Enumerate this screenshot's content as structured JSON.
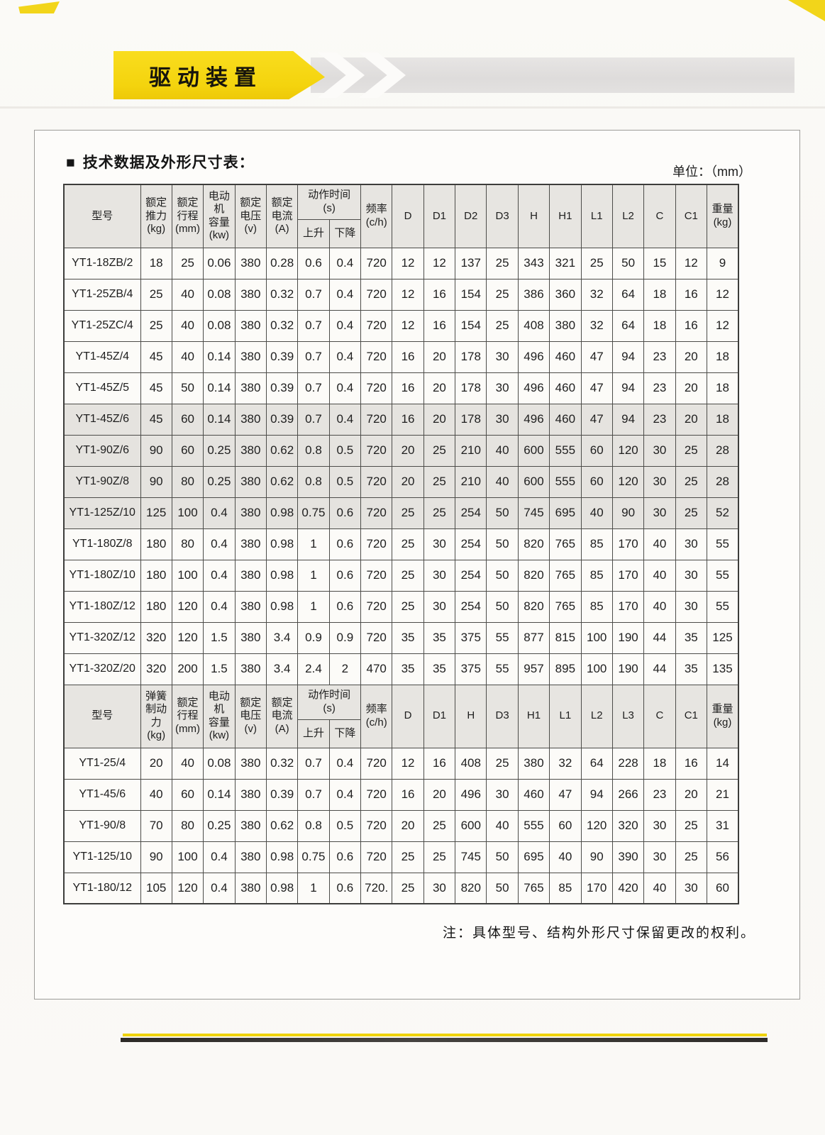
{
  "banner": {
    "title": "驱动装置"
  },
  "panel": {
    "bullet": "■",
    "title": "技术数据及外形尺寸表：",
    "unit": "单位：（mm）",
    "note": "注：具体型号、结构外形尺寸保留更改的权利。"
  },
  "colors": {
    "accent_yellow": "#f4d40e",
    "banner_gray": "#e0dedd",
    "header_cell_gray": "#e7e5e1",
    "shaded_row_gray": "#e5e3df",
    "footer_dark_line": "#2c2a27"
  },
  "table": {
    "sections": [
      {
        "header": {
          "model": "型号",
          "spec_cols": [
            [
              "额定",
              "推力",
              "(kg)"
            ],
            [
              "额定",
              "行程",
              "(mm)"
            ],
            [
              "电动机",
              "容量",
              "(kw)"
            ],
            [
              "额定",
              "电压",
              "(v)"
            ],
            [
              "额定",
              "电流",
              "(A)"
            ]
          ],
          "action_time": {
            "title": [
              "动作时间",
              "(s)"
            ],
            "up": "上升",
            "down": "下降"
          },
          "freq": [
            "频率",
            "(c/h)"
          ],
          "dims": [
            "D",
            "D1",
            "D2",
            "D3",
            "H",
            "H1",
            "L1",
            "L2",
            "C",
            "C1"
          ],
          "weight": [
            "重量",
            "(kg)"
          ]
        },
        "rows": [
          {
            "model": "YT1-18ZB/2",
            "shaded": false,
            "values": [
              "18",
              "25",
              "0.06",
              "380",
              "0.28",
              "0.6",
              "0.4",
              "720",
              "12",
              "12",
              "137",
              "25",
              "343",
              "321",
              "25",
              "50",
              "15",
              "12",
              "9"
            ]
          },
          {
            "model": "YT1-25ZB/4",
            "shaded": false,
            "values": [
              "25",
              "40",
              "0.08",
              "380",
              "0.32",
              "0.7",
              "0.4",
              "720",
              "12",
              "16",
              "154",
              "25",
              "386",
              "360",
              "32",
              "64",
              "18",
              "16",
              "12"
            ]
          },
          {
            "model": "YT1-25ZC/4",
            "shaded": false,
            "values": [
              "25",
              "40",
              "0.08",
              "380",
              "0.32",
              "0.7",
              "0.4",
              "720",
              "12",
              "16",
              "154",
              "25",
              "408",
              "380",
              "32",
              "64",
              "18",
              "16",
              "12"
            ]
          },
          {
            "model": "YT1-45Z/4",
            "shaded": false,
            "values": [
              "45",
              "40",
              "0.14",
              "380",
              "0.39",
              "0.7",
              "0.4",
              "720",
              "16",
              "20",
              "178",
              "30",
              "496",
              "460",
              "47",
              "94",
              "23",
              "20",
              "18"
            ]
          },
          {
            "model": "YT1-45Z/5",
            "shaded": false,
            "values": [
              "45",
              "50",
              "0.14",
              "380",
              "0.39",
              "0.7",
              "0.4",
              "720",
              "16",
              "20",
              "178",
              "30",
              "496",
              "460",
              "47",
              "94",
              "23",
              "20",
              "18"
            ]
          },
          {
            "model": "YT1-45Z/6",
            "shaded": true,
            "values": [
              "45",
              "60",
              "0.14",
              "380",
              "0.39",
              "0.7",
              "0.4",
              "720",
              "16",
              "20",
              "178",
              "30",
              "496",
              "460",
              "47",
              "94",
              "23",
              "20",
              "18"
            ]
          },
          {
            "model": "YT1-90Z/6",
            "shaded": true,
            "values": [
              "90",
              "60",
              "0.25",
              "380",
              "0.62",
              "0.8",
              "0.5",
              "720",
              "20",
              "25",
              "210",
              "40",
              "600",
              "555",
              "60",
              "120",
              "30",
              "25",
              "28"
            ]
          },
          {
            "model": "YT1-90Z/8",
            "shaded": true,
            "values": [
              "90",
              "80",
              "0.25",
              "380",
              "0.62",
              "0.8",
              "0.5",
              "720",
              "20",
              "25",
              "210",
              "40",
              "600",
              "555",
              "60",
              "120",
              "30",
              "25",
              "28"
            ]
          },
          {
            "model": "YT1-125Z/10",
            "shaded": true,
            "values": [
              "125",
              "100",
              "0.4",
              "380",
              "0.98",
              "0.75",
              "0.6",
              "720",
              "25",
              "25",
              "254",
              "50",
              "745",
              "695",
              "40",
              "90",
              "30",
              "25",
              "52"
            ]
          },
          {
            "model": "YT1-180Z/8",
            "shaded": false,
            "values": [
              "180",
              "80",
              "0.4",
              "380",
              "0.98",
              "1",
              "0.6",
              "720",
              "25",
              "30",
              "254",
              "50",
              "820",
              "765",
              "85",
              "170",
              "40",
              "30",
              "55"
            ]
          },
          {
            "model": "YT1-180Z/10",
            "shaded": false,
            "values": [
              "180",
              "100",
              "0.4",
              "380",
              "0.98",
              "1",
              "0.6",
              "720",
              "25",
              "30",
              "254",
              "50",
              "820",
              "765",
              "85",
              "170",
              "40",
              "30",
              "55"
            ]
          },
          {
            "model": "YT1-180Z/12",
            "shaded": false,
            "values": [
              "180",
              "120",
              "0.4",
              "380",
              "0.98",
              "1",
              "0.6",
              "720",
              "25",
              "30",
              "254",
              "50",
              "820",
              "765",
              "85",
              "170",
              "40",
              "30",
              "55"
            ]
          },
          {
            "model": "YT1-320Z/12",
            "shaded": false,
            "values": [
              "320",
              "120",
              "1.5",
              "380",
              "3.4",
              "0.9",
              "0.9",
              "720",
              "35",
              "35",
              "375",
              "55",
              "877",
              "815",
              "100",
              "190",
              "44",
              "35",
              "125"
            ]
          },
          {
            "model": "YT1-320Z/20",
            "shaded": false,
            "values": [
              "320",
              "200",
              "1.5",
              "380",
              "3.4",
              "2.4",
              "2",
              "470",
              "35",
              "35",
              "375",
              "55",
              "957",
              "895",
              "100",
              "190",
              "44",
              "35",
              "135"
            ]
          }
        ]
      },
      {
        "header": {
          "model": "型号",
          "spec_cols": [
            [
              "弹簧",
              "制动力",
              "(kg)"
            ],
            [
              "额定",
              "行程",
              "(mm)"
            ],
            [
              "电动机",
              "容量",
              "(kw)"
            ],
            [
              "额定",
              "电压",
              "(v)"
            ],
            [
              "额定",
              "电流",
              "(A)"
            ]
          ],
          "action_time": {
            "title": [
              "动作时间",
              "(s)"
            ],
            "up": "上升",
            "down": "下降"
          },
          "freq": [
            "频率",
            "(c/h)"
          ],
          "dims": [
            "D",
            "D1",
            "H",
            "D3",
            "H1",
            "L1",
            "L2",
            "L3",
            "C",
            "C1"
          ],
          "weight": [
            "重量",
            "(kg)"
          ]
        },
        "rows": [
          {
            "model": "YT1-25/4",
            "shaded": false,
            "values": [
              "20",
              "40",
              "0.08",
              "380",
              "0.32",
              "0.7",
              "0.4",
              "720",
              "12",
              "16",
              "408",
              "25",
              "380",
              "32",
              "64",
              "228",
              "18",
              "16",
              "14"
            ]
          },
          {
            "model": "YT1-45/6",
            "shaded": false,
            "values": [
              "40",
              "60",
              "0.14",
              "380",
              "0.39",
              "0.7",
              "0.4",
              "720",
              "16",
              "20",
              "496",
              "30",
              "460",
              "47",
              "94",
              "266",
              "23",
              "20",
              "21"
            ]
          },
          {
            "model": "YT1-90/8",
            "shaded": false,
            "values": [
              "70",
              "80",
              "0.25",
              "380",
              "0.62",
              "0.8",
              "0.5",
              "720",
              "20",
              "25",
              "600",
              "40",
              "555",
              "60",
              "120",
              "320",
              "30",
              "25",
              "31"
            ]
          },
          {
            "model": "YT1-125/10",
            "shaded": false,
            "values": [
              "90",
              "100",
              "0.4",
              "380",
              "0.98",
              "0.75",
              "0.6",
              "720",
              "25",
              "25",
              "745",
              "50",
              "695",
              "40",
              "90",
              "390",
              "30",
              "25",
              "56"
            ]
          },
          {
            "model": "YT1-180/12",
            "shaded": false,
            "values": [
              "105",
              "120",
              "0.4",
              "380",
              "0.98",
              "1",
              "0.6",
              "720.",
              "25",
              "30",
              "820",
              "50",
              "765",
              "85",
              "170",
              "420",
              "40",
              "30",
              "60"
            ]
          }
        ]
      }
    ]
  }
}
